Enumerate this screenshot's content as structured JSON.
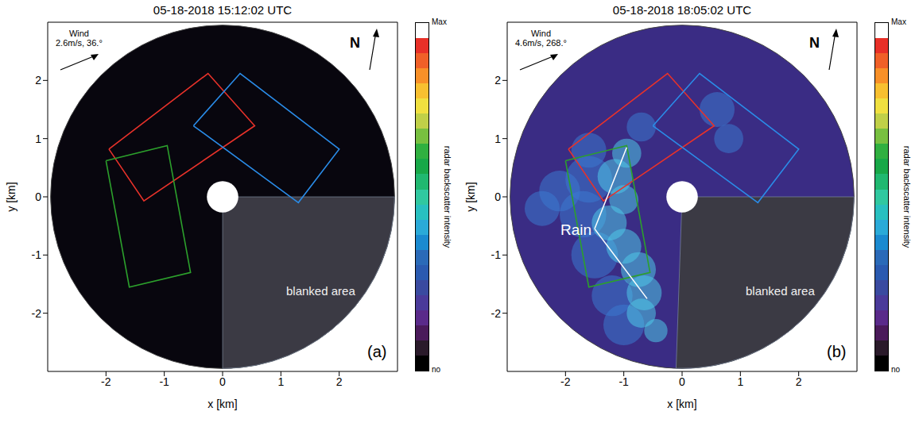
{
  "chart_data": [
    {
      "type": "scatter",
      "title": "05-18-2018 15:12:02 UTC",
      "x_label": "x [km]",
      "y_label": "y [km]",
      "xlim": [
        -3,
        3
      ],
      "ylim": [
        -3,
        3
      ],
      "xticks": [
        -2,
        -1,
        0,
        1,
        2
      ],
      "yticks": [
        -2,
        -1,
        0,
        1,
        2
      ],
      "panel": "(a)",
      "wind": [
        "Wind",
        "2.6m/s, 36.°"
      ],
      "north": "N",
      "radar_position": [
        0,
        0
      ],
      "range_radius": 2.95,
      "center_radius": 0.27,
      "background": "#08060e",
      "blanked_area": {
        "label": "blanked area",
        "from": -90,
        "to": 0
      },
      "series": [
        {
          "color": "#e8322a",
          "x": [
            -1.95,
            -0.25,
            0.55,
            -1.35
          ],
          "y": [
            0.82,
            2.12,
            1.22,
            -0.07
          ]
        },
        {
          "color": "#2a8ce8",
          "x": [
            -0.5,
            0.3,
            2.0,
            1.3
          ],
          "y": [
            1.22,
            2.12,
            0.82,
            -0.1
          ]
        },
        {
          "color": "#2ca02c",
          "x": [
            -2.0,
            -0.95,
            -0.55,
            -1.6
          ],
          "y": [
            0.62,
            0.88,
            -1.3,
            -1.55
          ]
        }
      ],
      "colorbar": {
        "label": "radar backscatter intensity",
        "min_label": "no",
        "max_label": "Max",
        "colors": [
          "#000000",
          "#2a1a2a",
          "#4a1a5a",
          "#5a2a8a",
          "#4a3a9a",
          "#3a4aa0",
          "#2a5ab0",
          "#2a6ab8",
          "#1a8ad0",
          "#2aaad8",
          "#28c0c0",
          "#30c8a0",
          "#20b870",
          "#18a848",
          "#30b040",
          "#78c040",
          "#c0d048",
          "#f0e040",
          "#f8c030",
          "#f89028",
          "#f06028",
          "#e83028",
          "#ffffff"
        ]
      }
    },
    {
      "type": "scatter",
      "title": "05-18-2018 18:05:02 UTC",
      "x_label": "x [km]",
      "y_label": "y [km]",
      "xlim": [
        -3,
        3
      ],
      "ylim": [
        -3,
        3
      ],
      "xticks": [
        -2,
        -1,
        0,
        1,
        2
      ],
      "yticks": [
        -2,
        -1,
        0,
        1,
        2
      ],
      "panel": "(b)",
      "wind": [
        "Wind",
        "4.6m/s, 268.°"
      ],
      "north": "N",
      "radar_position": [
        0,
        0
      ],
      "range_radius": 2.95,
      "center_radius": 0.27,
      "background": "#3a2c84",
      "blanked_area": {
        "label": "blanked area",
        "from": -92,
        "to": 0
      },
      "series": [
        {
          "color": "#e8322a",
          "x": [
            -1.95,
            -0.25,
            0.55,
            -1.35
          ],
          "y": [
            0.82,
            2.12,
            1.22,
            -0.07
          ]
        },
        {
          "color": "#2a8ce8",
          "x": [
            -0.5,
            0.3,
            2.0,
            1.3
          ],
          "y": [
            1.22,
            2.12,
            0.82,
            -0.1
          ]
        },
        {
          "color": "#2ca02c",
          "x": [
            -2.0,
            -0.95,
            -0.55,
            -1.6
          ],
          "y": [
            0.62,
            0.88,
            -1.3,
            -1.55
          ]
        }
      ],
      "rain_cells": [
        {
          "x": -1.6,
          "y": 0.3,
          "r": 0.4,
          "color": "#3a7ad0"
        },
        {
          "x": -2.1,
          "y": 0.1,
          "r": 0.35,
          "color": "#3a7ad0"
        },
        {
          "x": -2.4,
          "y": -0.2,
          "r": 0.3,
          "color": "#3a7ad0"
        },
        {
          "x": -1.7,
          "y": -0.3,
          "r": 0.4,
          "color": "#3a7ad0"
        },
        {
          "x": -1.5,
          "y": -1.0,
          "r": 0.4,
          "color": "#3a7ad0"
        },
        {
          "x": -1.2,
          "y": -1.7,
          "r": 0.35,
          "color": "#3a7ad0"
        },
        {
          "x": -1.0,
          "y": -2.2,
          "r": 0.35,
          "color": "#3a7ad0"
        },
        {
          "x": -1.6,
          "y": 0.8,
          "r": 0.3,
          "color": "#3a7ad0"
        },
        {
          "x": -0.7,
          "y": 1.2,
          "r": 0.25,
          "color": "#3a7ad0"
        },
        {
          "x": 0.6,
          "y": 1.5,
          "r": 0.3,
          "color": "#3a7ad0"
        },
        {
          "x": 0.8,
          "y": 1.0,
          "r": 0.25,
          "color": "#3a7ad0"
        },
        {
          "x": -0.95,
          "y": 0.75,
          "r": 0.25,
          "color": "#4fc8e8"
        },
        {
          "x": -1.15,
          "y": 0.35,
          "r": 0.3,
          "color": "#4fc8e8"
        },
        {
          "x": -1.0,
          "y": -0.05,
          "r": 0.25,
          "color": "#4fc8e8"
        },
        {
          "x": -1.25,
          "y": -0.45,
          "r": 0.3,
          "color": "#4fc8e8"
        },
        {
          "x": -1.0,
          "y": -0.85,
          "r": 0.3,
          "color": "#4fc8e8"
        },
        {
          "x": -0.75,
          "y": -1.25,
          "r": 0.3,
          "color": "#4fc8e8"
        },
        {
          "x": -0.65,
          "y": -1.65,
          "r": 0.3,
          "color": "#4fc8e8"
        },
        {
          "x": -0.7,
          "y": -2.0,
          "r": 0.25,
          "color": "#4fc8e8"
        },
        {
          "x": -0.45,
          "y": -2.3,
          "r": 0.2,
          "color": "#4fc8e8"
        }
      ],
      "annotations": [
        {
          "text": "Rain",
          "x": -1.5,
          "y": -0.55,
          "targets": [
            {
              "x": -0.95,
              "y": 0.85
            },
            {
              "x": -0.6,
              "y": -1.75
            }
          ]
        }
      ],
      "colorbar": {
        "label": "radar backscatter intensity",
        "min_label": "no",
        "max_label": "Max",
        "colors": [
          "#000000",
          "#2a1a2a",
          "#4a1a5a",
          "#5a2a8a",
          "#4a3a9a",
          "#3a4aa0",
          "#2a5ab0",
          "#2a6ab8",
          "#1a8ad0",
          "#2aaad8",
          "#28c0c0",
          "#30c8a0",
          "#20b870",
          "#18a848",
          "#30b040",
          "#78c040",
          "#c0d048",
          "#f0e040",
          "#f8c030",
          "#f89028",
          "#f06028",
          "#e83028",
          "#ffffff"
        ]
      }
    }
  ]
}
